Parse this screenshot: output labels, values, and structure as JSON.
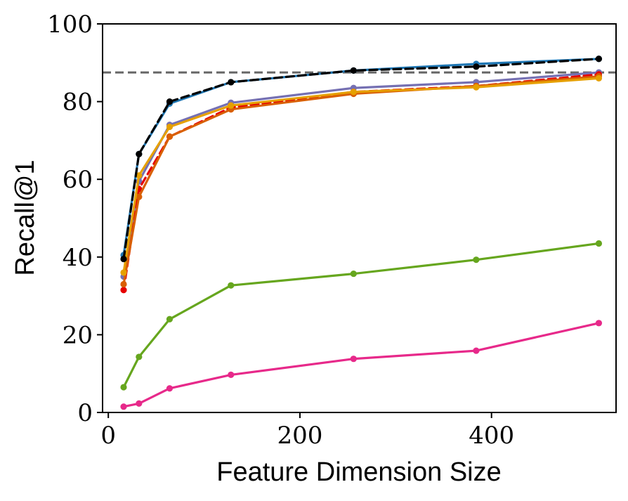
{
  "chart_data": {
    "type": "line",
    "title": "",
    "xlabel": "Feature Dimension Size",
    "ylabel": "Recall@1",
    "xlim": [
      -6,
      530
    ],
    "ylim": [
      0,
      100
    ],
    "xticks": [
      0,
      200,
      400
    ],
    "yticks": [
      0,
      20,
      40,
      60,
      80,
      100
    ],
    "grid": false,
    "legend": "none",
    "reference_line": {
      "y": 87.5,
      "style": "dashed",
      "color": "#666666"
    },
    "x": [
      16,
      32,
      64,
      128,
      256,
      384,
      512
    ],
    "series": [
      {
        "color": "#1f77b4",
        "style": "solid",
        "values": [
          40.5,
          66.5,
          79.5,
          85.0,
          88.0,
          89.7,
          91.0
        ]
      },
      {
        "color": "#7570b3",
        "style": "solid",
        "values": [
          35.0,
          59.5,
          74.0,
          79.7,
          83.5,
          85.0,
          87.5
        ]
      },
      {
        "color": "#e60000",
        "style": "dashed",
        "values": [
          31.5,
          57.5,
          71.0,
          78.5,
          82.5,
          84.0,
          87.0
        ]
      },
      {
        "color": "#d95f02",
        "style": "solid",
        "values": [
          33.0,
          55.5,
          71.0,
          78.0,
          82.0,
          84.0,
          86.5
        ]
      },
      {
        "color": "#e6a000",
        "style": "solid",
        "values": [
          36.0,
          61.0,
          73.5,
          79.0,
          82.5,
          83.7,
          86.0
        ]
      },
      {
        "color": "#000000",
        "style": "dashed",
        "values": [
          39.5,
          66.5,
          80.0,
          85.0,
          88.0,
          89.0,
          91.0
        ]
      },
      {
        "color": "#66a61e",
        "style": "solid",
        "values": [
          6.5,
          14.3,
          24.0,
          32.7,
          35.7,
          39.3,
          43.5
        ]
      },
      {
        "color": "#e7298a",
        "style": "solid",
        "values": [
          1.5,
          2.3,
          6.2,
          9.7,
          13.8,
          15.9,
          23.0
        ]
      }
    ]
  }
}
